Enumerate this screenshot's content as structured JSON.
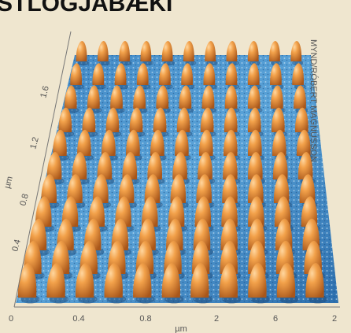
{
  "header": {
    "title": "STLÓGJABÆKI"
  },
  "credit": "MYND/RÓBERT MAGNÚSSON",
  "x_axis": {
    "label": "µm",
    "ticks": [
      "0",
      "0.4",
      "0.8",
      "2",
      "6",
      "2"
    ]
  },
  "y_axis": {
    "label": "µm",
    "ticks": [
      "0.4",
      "0.8",
      "1.2",
      "1.6"
    ]
  }
}
